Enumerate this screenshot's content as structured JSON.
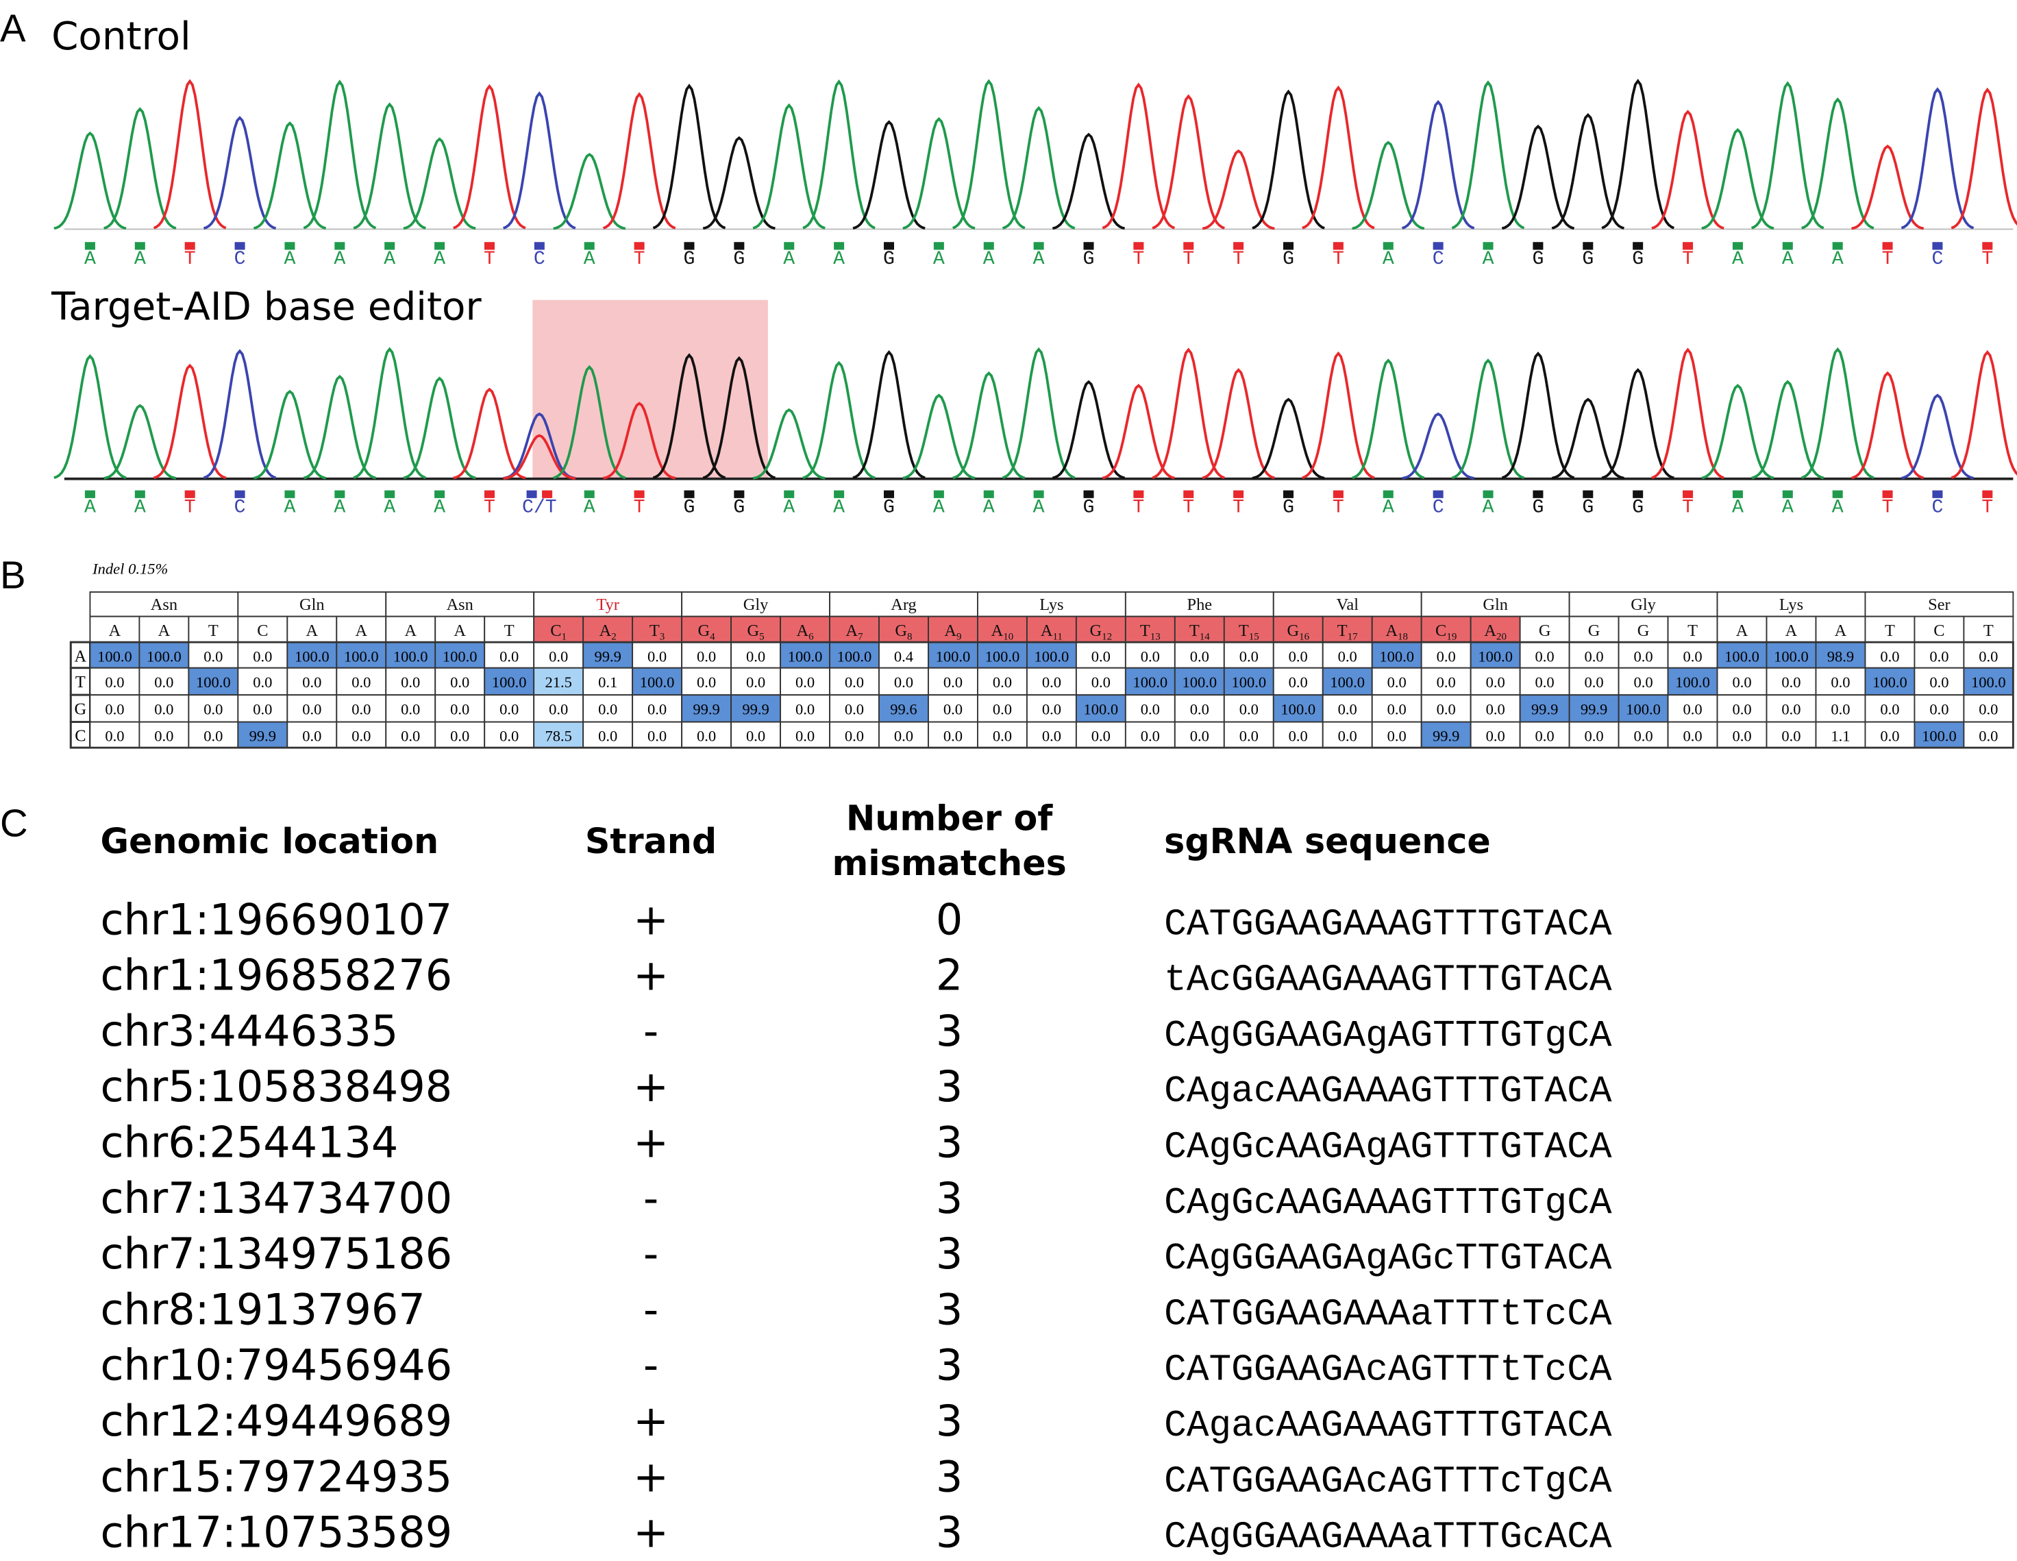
{
  "panel_labels": [
    "A",
    "B",
    "C"
  ],
  "panel_a": {
    "control": {
      "label": "Control",
      "bases": [
        "A",
        "A",
        "T",
        "C",
        "A",
        "A",
        "A",
        "A",
        "T",
        "C",
        "A",
        "T",
        "G",
        "G",
        "A",
        "A",
        "G",
        "A",
        "A",
        "A",
        "G",
        "T",
        "T",
        "T",
        "G",
        "T",
        "A",
        "C",
        "A",
        "G",
        "G",
        "G",
        "T",
        "A",
        "A",
        "A",
        "T",
        "C",
        "T"
      ]
    },
    "edited": {
      "label": "Target-AID base editor",
      "bases": [
        "A",
        "A",
        "T",
        "C",
        "A",
        "A",
        "A",
        "A",
        "T",
        "C/T",
        "A",
        "T",
        "G",
        "G",
        "A",
        "A",
        "G",
        "A",
        "A",
        "A",
        "G",
        "T",
        "T",
        "T",
        "G",
        "T",
        "A",
        "C",
        "A",
        "G",
        "G",
        "G",
        "T",
        "A",
        "A",
        "A",
        "T",
        "C",
        "T"
      ]
    }
  },
  "panel_b": {
    "indel": "Indel 0.15%",
    "highlight_codon": 3,
    "amino_acids": [
      "Asn",
      "Gln",
      "Asn",
      "Tyr",
      "Gly",
      "Arg",
      "Lys",
      "Phe",
      "Val",
      "Gln",
      "Gly",
      "Lys",
      "Ser"
    ],
    "bases": [
      {
        "base": "A"
      },
      {
        "base": "A"
      },
      {
        "base": "T"
      },
      {
        "base": "C"
      },
      {
        "base": "A"
      },
      {
        "base": "A"
      },
      {
        "base": "A"
      },
      {
        "base": "A"
      },
      {
        "base": "T"
      },
      {
        "base": "C",
        "sub": "1"
      },
      {
        "base": "A",
        "sub": "2"
      },
      {
        "base": "T",
        "sub": "3"
      },
      {
        "base": "G",
        "sub": "4"
      },
      {
        "base": "G",
        "sub": "5"
      },
      {
        "base": "A",
        "sub": "6"
      },
      {
        "base": "A",
        "sub": "7"
      },
      {
        "base": "G",
        "sub": "8"
      },
      {
        "base": "A",
        "sub": "9"
      },
      {
        "base": "A",
        "sub": "10"
      },
      {
        "base": "A",
        "sub": "11"
      },
      {
        "base": "G",
        "sub": "12"
      },
      {
        "base": "T",
        "sub": "13"
      },
      {
        "base": "T",
        "sub": "14"
      },
      {
        "base": "T",
        "sub": "15"
      },
      {
        "base": "G",
        "sub": "16"
      },
      {
        "base": "T",
        "sub": "17"
      },
      {
        "base": "A",
        "sub": "18"
      },
      {
        "base": "C",
        "sub": "19"
      },
      {
        "base": "A",
        "sub": "20"
      },
      {
        "base": "G"
      },
      {
        "base": "G"
      },
      {
        "base": "G"
      },
      {
        "base": "T"
      },
      {
        "base": "A"
      },
      {
        "base": "A"
      },
      {
        "base": "A"
      },
      {
        "base": "T"
      },
      {
        "base": "C"
      },
      {
        "base": "T"
      }
    ],
    "rows": [
      {
        "base": "A",
        "values": [
          "100.0",
          "100.0",
          "0.0",
          "0.0",
          "100.0",
          "100.0",
          "100.0",
          "100.0",
          "0.0",
          "0.0",
          "99.9",
          "0.0",
          "0.0",
          "0.0",
          "100.0",
          "100.0",
          "0.4",
          "100.0",
          "100.0",
          "100.0",
          "0.0",
          "0.0",
          "0.0",
          "0.0",
          "0.0",
          "0.0",
          "100.0",
          "0.0",
          "100.0",
          "0.0",
          "0.0",
          "0.0",
          "0.0",
          "100.0",
          "100.0",
          "98.9",
          "0.0",
          "0.0",
          "0.0"
        ]
      },
      {
        "base": "T",
        "values": [
          "0.0",
          "0.0",
          "100.0",
          "0.0",
          "0.0",
          "0.0",
          "0.0",
          "0.0",
          "100.0",
          "21.5",
          "0.1",
          "100.0",
          "0.0",
          "0.0",
          "0.0",
          "0.0",
          "0.0",
          "0.0",
          "0.0",
          "0.0",
          "0.0",
          "100.0",
          "100.0",
          "100.0",
          "0.0",
          "100.0",
          "0.0",
          "0.0",
          "0.0",
          "0.0",
          "0.0",
          "0.0",
          "100.0",
          "0.0",
          "0.0",
          "0.0",
          "100.0",
          "0.0",
          "100.0"
        ]
      },
      {
        "base": "G",
        "values": [
          "0.0",
          "0.0",
          "0.0",
          "0.0",
          "0.0",
          "0.0",
          "0.0",
          "0.0",
          "0.0",
          "0.0",
          "0.0",
          "0.0",
          "99.9",
          "99.9",
          "0.0",
          "0.0",
          "99.6",
          "0.0",
          "0.0",
          "0.0",
          "100.0",
          "0.0",
          "0.0",
          "0.0",
          "100.0",
          "0.0",
          "0.0",
          "0.0",
          "0.0",
          "99.9",
          "99.9",
          "100.0",
          "0.0",
          "0.0",
          "0.0",
          "0.0",
          "0.0",
          "0.0",
          "0.0"
        ]
      },
      {
        "base": "C",
        "values": [
          "0.0",
          "0.0",
          "0.0",
          "99.9",
          "0.0",
          "0.0",
          "0.0",
          "0.0",
          "0.0",
          "78.5",
          "0.0",
          "0.0",
          "0.0",
          "0.0",
          "0.0",
          "0.0",
          "0.0",
          "0.0",
          "0.0",
          "0.0",
          "0.0",
          "0.0",
          "0.0",
          "0.0",
          "0.0",
          "0.0",
          "0.0",
          "99.9",
          "0.0",
          "0.0",
          "0.0",
          "0.0",
          "0.0",
          "0.0",
          "0.0",
          "1.1",
          "0.0",
          "100.0",
          "0.0"
        ]
      }
    ]
  },
  "panel_c": {
    "headers": [
      [
        "Genomic location"
      ],
      [
        "Strand"
      ],
      [
        "Number of",
        "mismatches"
      ],
      [
        "sgRNA sequence"
      ]
    ],
    "rows": [
      [
        "chr1:196690107",
        "+",
        "0",
        "CATGGAAGAAAGTTTGTACA"
      ],
      [
        "chr1:196858276",
        "+",
        "2",
        "tAcGGAAGAAAGTTTGTACA"
      ],
      [
        "chr3:4446335",
        "-",
        "3",
        "CAgGGAAGAgAGTTTGTgCA"
      ],
      [
        "chr5:105838498",
        "+",
        "3",
        "CAgacAAGAAAGTTTGTACA"
      ],
      [
        "chr6:2544134",
        "+",
        "3",
        "CAgGcAAGAgAGTTTGTACA"
      ],
      [
        "chr7:134734700",
        "-",
        "3",
        "CAgGcAAGAAAGTTTGTgCA"
      ],
      [
        "chr7:134975186",
        "-",
        "3",
        "CAgGGAAGAgAGcTTGTACA"
      ],
      [
        "chr8:19137967",
        "-",
        "3",
        "CATGGAAGAAAaTTTtTcCA"
      ],
      [
        "chr10:79456946",
        "-",
        "3",
        "CATGGAAGAcAGTTTtTcCA"
      ],
      [
        "chr12:49449689",
        "+",
        "3",
        "CAgacAAGAAAGTTTGTACA"
      ],
      [
        "chr15:79724935",
        "+",
        "3",
        "CATGGAAGAcAGTTTcTgCA"
      ],
      [
        "chr17:10753589",
        "+",
        "3",
        "CAgGGAAGAAAaTTTGcACA"
      ]
    ]
  }
}
